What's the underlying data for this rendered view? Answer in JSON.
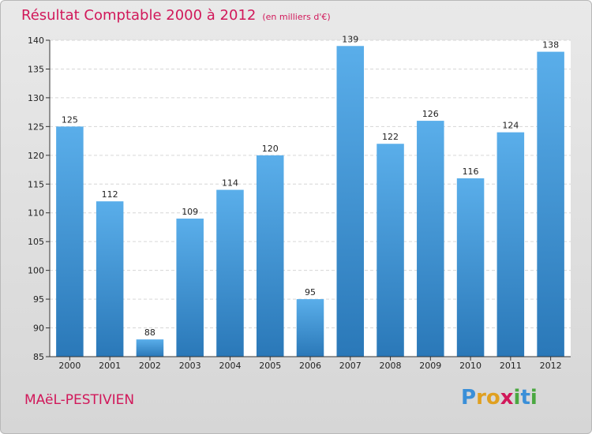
{
  "header": {
    "title": "Résultat Comptable 2000 à 2012",
    "subtitle": "(en milliers d'€)"
  },
  "footer": {
    "town": "MAëL-PESTIVIEN",
    "brand_letters": [
      "P",
      "r",
      "o",
      "x",
      "i",
      "t",
      "i"
    ]
  },
  "colors": {
    "bar_top": "#5aaeea",
    "bar_bottom": "#2a78b8",
    "accent": "#d1185a",
    "brand": [
      "#3a8fd8",
      "#e0a020",
      "#e0a020",
      "#d1185a",
      "#4aa840",
      "#3a8fd8",
      "#4aa840"
    ]
  },
  "chart_data": {
    "type": "bar",
    "title": "Résultat Comptable 2000 à 2012",
    "ylabel": "",
    "xlabel": "",
    "categories": [
      "2000",
      "2001",
      "2002",
      "2003",
      "2004",
      "2005",
      "2006",
      "2007",
      "2008",
      "2009",
      "2010",
      "2011",
      "2012"
    ],
    "values": [
      125,
      112,
      88,
      109,
      114,
      120,
      95,
      139,
      122,
      126,
      116,
      124,
      138
    ],
    "ylim": [
      85,
      140
    ],
    "yticks": [
      85,
      90,
      95,
      100,
      105,
      110,
      115,
      120,
      125,
      130,
      135,
      140
    ],
    "grid": true
  }
}
